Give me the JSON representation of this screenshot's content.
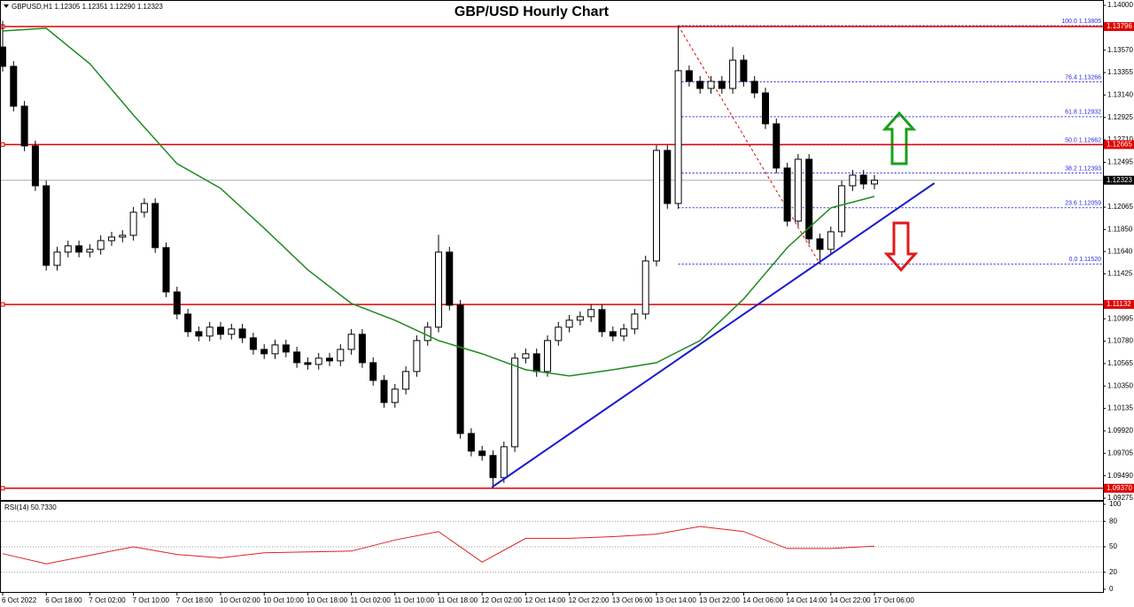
{
  "chart_data": {
    "type": "candlestick",
    "title": "GBP/USD Hourly Chart",
    "header": "GBPUSD,H1  1.12305 1.12351 1.12290 1.12323",
    "categories": [
      "6 Oct 2022",
      null,
      null,
      null,
      "6 Oct 18:00",
      null,
      null,
      null,
      "7 Oct 02:00",
      null,
      null,
      null,
      "7 Oct 10:00",
      null,
      null,
      null,
      "7 Oct 18:00",
      null,
      null,
      null,
      "10 Oct 02:00",
      null,
      null,
      null,
      "10 Oct 10:00",
      null,
      null,
      null,
      "10 Oct 18:00",
      null,
      null,
      null,
      "11 Oct 02:00",
      null,
      null,
      null,
      "11 Oct 10:00",
      null,
      null,
      null,
      "11 Oct 18:00",
      null,
      null,
      null,
      "12 Oct 02:00",
      null,
      null,
      null,
      "12 Oct 14:00",
      null,
      null,
      null,
      "12 Oct 22:00",
      null,
      null,
      null,
      "13 Oct 06:00",
      null,
      null,
      null,
      "13 Oct 14:00",
      null,
      null,
      null,
      "13 Oct 22:00",
      null,
      null,
      null,
      "14 Oct 06:00",
      null,
      null,
      null,
      "14 Oct 14:00",
      null,
      null,
      null,
      "14 Oct 22:00",
      null,
      null,
      null,
      "17 Oct 06:00"
    ],
    "open": [
      1.136,
      1.13415,
      1.13033,
      1.12652,
      1.1227,
      1.11507,
      1.11634,
      1.11694,
      1.11634,
      1.1166,
      1.11744,
      1.11778,
      1.11795,
      1.12016,
      1.121,
      1.11677,
      1.11252,
      1.1104,
      1.10871,
      1.10829,
      1.10914,
      1.10846,
      1.10897,
      1.10812,
      1.10701,
      1.10659,
      1.10744,
      1.10676,
      1.10574,
      1.10557,
      1.10617,
      1.10591,
      1.10701,
      1.10846,
      1.10574,
      1.10404,
      1.10192,
      1.1032,
      1.10489,
      1.10786,
      1.10914,
      1.11634,
      1.11125,
      1.09895,
      1.09726,
      1.09684,
      1.09472,
      1.09768,
      1.10617,
      1.10659,
      1.10489,
      1.10786,
      1.10914,
      1.10981,
      1.11015,
      1.11083,
      1.10871,
      1.10829,
      1.10897,
      1.1104,
      1.11549,
      1.12609,
      1.121,
      1.13373,
      1.13271,
      1.13203,
      1.13271,
      1.13203,
      1.13474,
      1.13271,
      1.1316,
      1.12864,
      1.1244,
      1.11931,
      1.12524,
      1.11761,
      1.1166,
      1.11829,
      1.1227,
      1.12372,
      1.12287
    ],
    "high": [
      1.1385,
      1.13465,
      1.13083,
      1.12702,
      1.1232,
      1.11684,
      1.11744,
      1.11744,
      1.1171,
      1.11794,
      1.11828,
      1.11845,
      1.12066,
      1.1215,
      1.1215,
      1.11727,
      1.11302,
      1.1109,
      1.10921,
      1.10964,
      1.10964,
      1.10947,
      1.10947,
      1.10862,
      1.10751,
      1.10794,
      1.10794,
      1.10726,
      1.10624,
      1.10667,
      1.10667,
      1.10751,
      1.10896,
      1.10896,
      1.10624,
      1.10454,
      1.1037,
      1.10539,
      1.10836,
      1.10964,
      1.118,
      1.11684,
      1.11175,
      1.09945,
      1.09776,
      1.09734,
      1.09818,
      1.10667,
      1.10709,
      1.10709,
      1.10836,
      1.10964,
      1.11031,
      1.11065,
      1.11133,
      1.11133,
      1.10921,
      1.10947,
      1.1109,
      1.11599,
      1.12659,
      1.12659,
      1.13805,
      1.13423,
      1.13321,
      1.13321,
      1.13321,
      1.136,
      1.13524,
      1.13321,
      1.1321,
      1.12914,
      1.1249,
      1.12574,
      1.12574,
      1.11811,
      1.11879,
      1.1232,
      1.12422,
      1.12422,
      1.12373
    ],
    "low": [
      1.13365,
      1.12983,
      1.12602,
      1.1222,
      1.11457,
      1.11457,
      1.11584,
      1.11584,
      1.11584,
      1.1161,
      1.11694,
      1.11728,
      1.11745,
      1.11966,
      1.11627,
      1.11202,
      1.1099,
      1.10821,
      1.10779,
      1.10779,
      1.10796,
      1.10796,
      1.10762,
      1.10651,
      1.10609,
      1.10609,
      1.10626,
      1.10524,
      1.10507,
      1.10507,
      1.10541,
      1.10541,
      1.10651,
      1.10524,
      1.10354,
      1.10142,
      1.10142,
      1.1027,
      1.10439,
      1.10736,
      1.10864,
      1.11075,
      1.09845,
      1.09676,
      1.09634,
      1.0937,
      1.09422,
      1.09718,
      1.10567,
      1.10439,
      1.10439,
      1.10736,
      1.10864,
      1.10931,
      1.10965,
      1.10821,
      1.10779,
      1.10779,
      1.10847,
      1.1099,
      1.11499,
      1.1205,
      1.1205,
      1.13221,
      1.13153,
      1.13153,
      1.13153,
      1.13153,
      1.13221,
      1.1311,
      1.12814,
      1.1239,
      1.11881,
      1.11881,
      1.11711,
      1.1152,
      1.1161,
      1.11779,
      1.1222,
      1.12237,
      1.12237
    ],
    "close": [
      1.13415,
      1.13033,
      1.12652,
      1.1227,
      1.11507,
      1.11634,
      1.11694,
      1.11634,
      1.1166,
      1.11744,
      1.11778,
      1.11795,
      1.12016,
      1.121,
      1.11677,
      1.11252,
      1.1104,
      1.10871,
      1.10829,
      1.10914,
      1.10846,
      1.10897,
      1.10812,
      1.10701,
      1.10659,
      1.10744,
      1.10676,
      1.10574,
      1.10557,
      1.10617,
      1.10591,
      1.10701,
      1.10846,
      1.10574,
      1.10404,
      1.10192,
      1.1032,
      1.10489,
      1.10786,
      1.10914,
      1.11634,
      1.11125,
      1.09895,
      1.09726,
      1.09684,
      1.09472,
      1.09768,
      1.10617,
      1.10659,
      1.10489,
      1.10786,
      1.10914,
      1.10981,
      1.11015,
      1.11083,
      1.10871,
      1.10829,
      1.10897,
      1.1104,
      1.11549,
      1.12609,
      1.121,
      1.13373,
      1.13271,
      1.13203,
      1.13271,
      1.13203,
      1.13474,
      1.13271,
      1.1316,
      1.12864,
      1.1244,
      1.11931,
      1.12524,
      1.11761,
      1.1166,
      1.11829,
      1.1227,
      1.12372,
      1.12287,
      1.12323
    ],
    "up_color": "#ffffff",
    "down_color": "#000000",
    "ylim": [
      1.09275,
      1.14
    ],
    "yticks": [
      {
        "value": 1.14,
        "label": "1.14000"
      },
      {
        "value": 1.1357,
        "label": "1.13570"
      },
      1.13355,
      {
        "value": 1.1314,
        "label": "1.13140"
      },
      1.12925,
      {
        "value": 1.1271,
        "label": "1.12710"
      },
      1.12495,
      1.12065,
      {
        "value": 1.1185,
        "label": "1.11850"
      },
      {
        "value": 1.1164,
        "label": "1.11640"
      },
      1.11425,
      1.10995,
      {
        "value": 1.1078,
        "label": "1.10780"
      },
      1.10565,
      {
        "value": 1.1035,
        "label": "1.10350"
      },
      1.10135,
      {
        "value": 1.0992,
        "label": "1.09920"
      },
      1.09705,
      {
        "value": 1.0949,
        "label": "1.09490"
      },
      1.09275
    ],
    "levels": {
      "color": "#e00000",
      "values": [
        1.13796,
        {
          "value": 1.12665,
          "label": "1.12665"
        },
        1.11132,
        {
          "value": 1.0937,
          "label": "1.09370"
        }
      ]
    },
    "current_price": 1.12323,
    "fibonacci": {
      "color": "#2a2ae0",
      "x": [
        62,
        75
      ],
      "levels": [
        {
          "value": 1.13805,
          "label": "100.0 1.13805"
        },
        {
          "value": 1.13266,
          "label": "76.4 1.13266"
        },
        {
          "value": 1.12932,
          "label": "61.8 1.12932"
        },
        {
          "value": 1.12662,
          "label": "50.0 1.12662"
        },
        {
          "value": 1.12393,
          "label": "38.2 1.12393"
        },
        {
          "value": 1.12059,
          "label": "23.6 1.12059"
        },
        {
          "value": 1.1152,
          "label": "0.0 1.11520"
        }
      ]
    },
    "moving_average": {
      "color": "#1f8a1f",
      "x": [
        0,
        4,
        8,
        12,
        16,
        20,
        24,
        28,
        32,
        36,
        40,
        44,
        48,
        52,
        56,
        60,
        64,
        68,
        72,
        76,
        80
      ],
      "values": [
        1.13754,
        1.1378,
        1.1344,
        1.12948,
        1.12482,
        1.12245,
        1.11863,
        1.11464,
        1.11142,
        1.10981,
        1.10786,
        1.10659,
        1.10506,
        1.10447,
        1.10506,
        1.10574,
        1.10786,
        1.11185,
        1.11677,
        1.12058,
        1.12168
      ]
    },
    "trendline": {
      "color": "#1a1ad0",
      "x": [
        44.9,
        85.5
      ],
      "values": [
        1.0938,
        1.12295
      ]
    },
    "rsi": {
      "label": "RSI(14) 50.7330",
      "color": "#e02020",
      "x": [
        0,
        4,
        8,
        12,
        16,
        20,
        24,
        28,
        32,
        36,
        40,
        44,
        48,
        52,
        56,
        60,
        64,
        68,
        72,
        76,
        80
      ],
      "values": [
        42,
        30,
        40,
        50,
        41,
        37,
        43,
        44,
        45,
        58,
        68,
        32,
        60,
        60,
        62,
        65,
        74,
        68,
        48,
        48,
        50.733
      ],
      "ylim": [
        0,
        100
      ],
      "yticks": [
        100,
        80,
        50,
        20,
        0
      ]
    }
  }
}
